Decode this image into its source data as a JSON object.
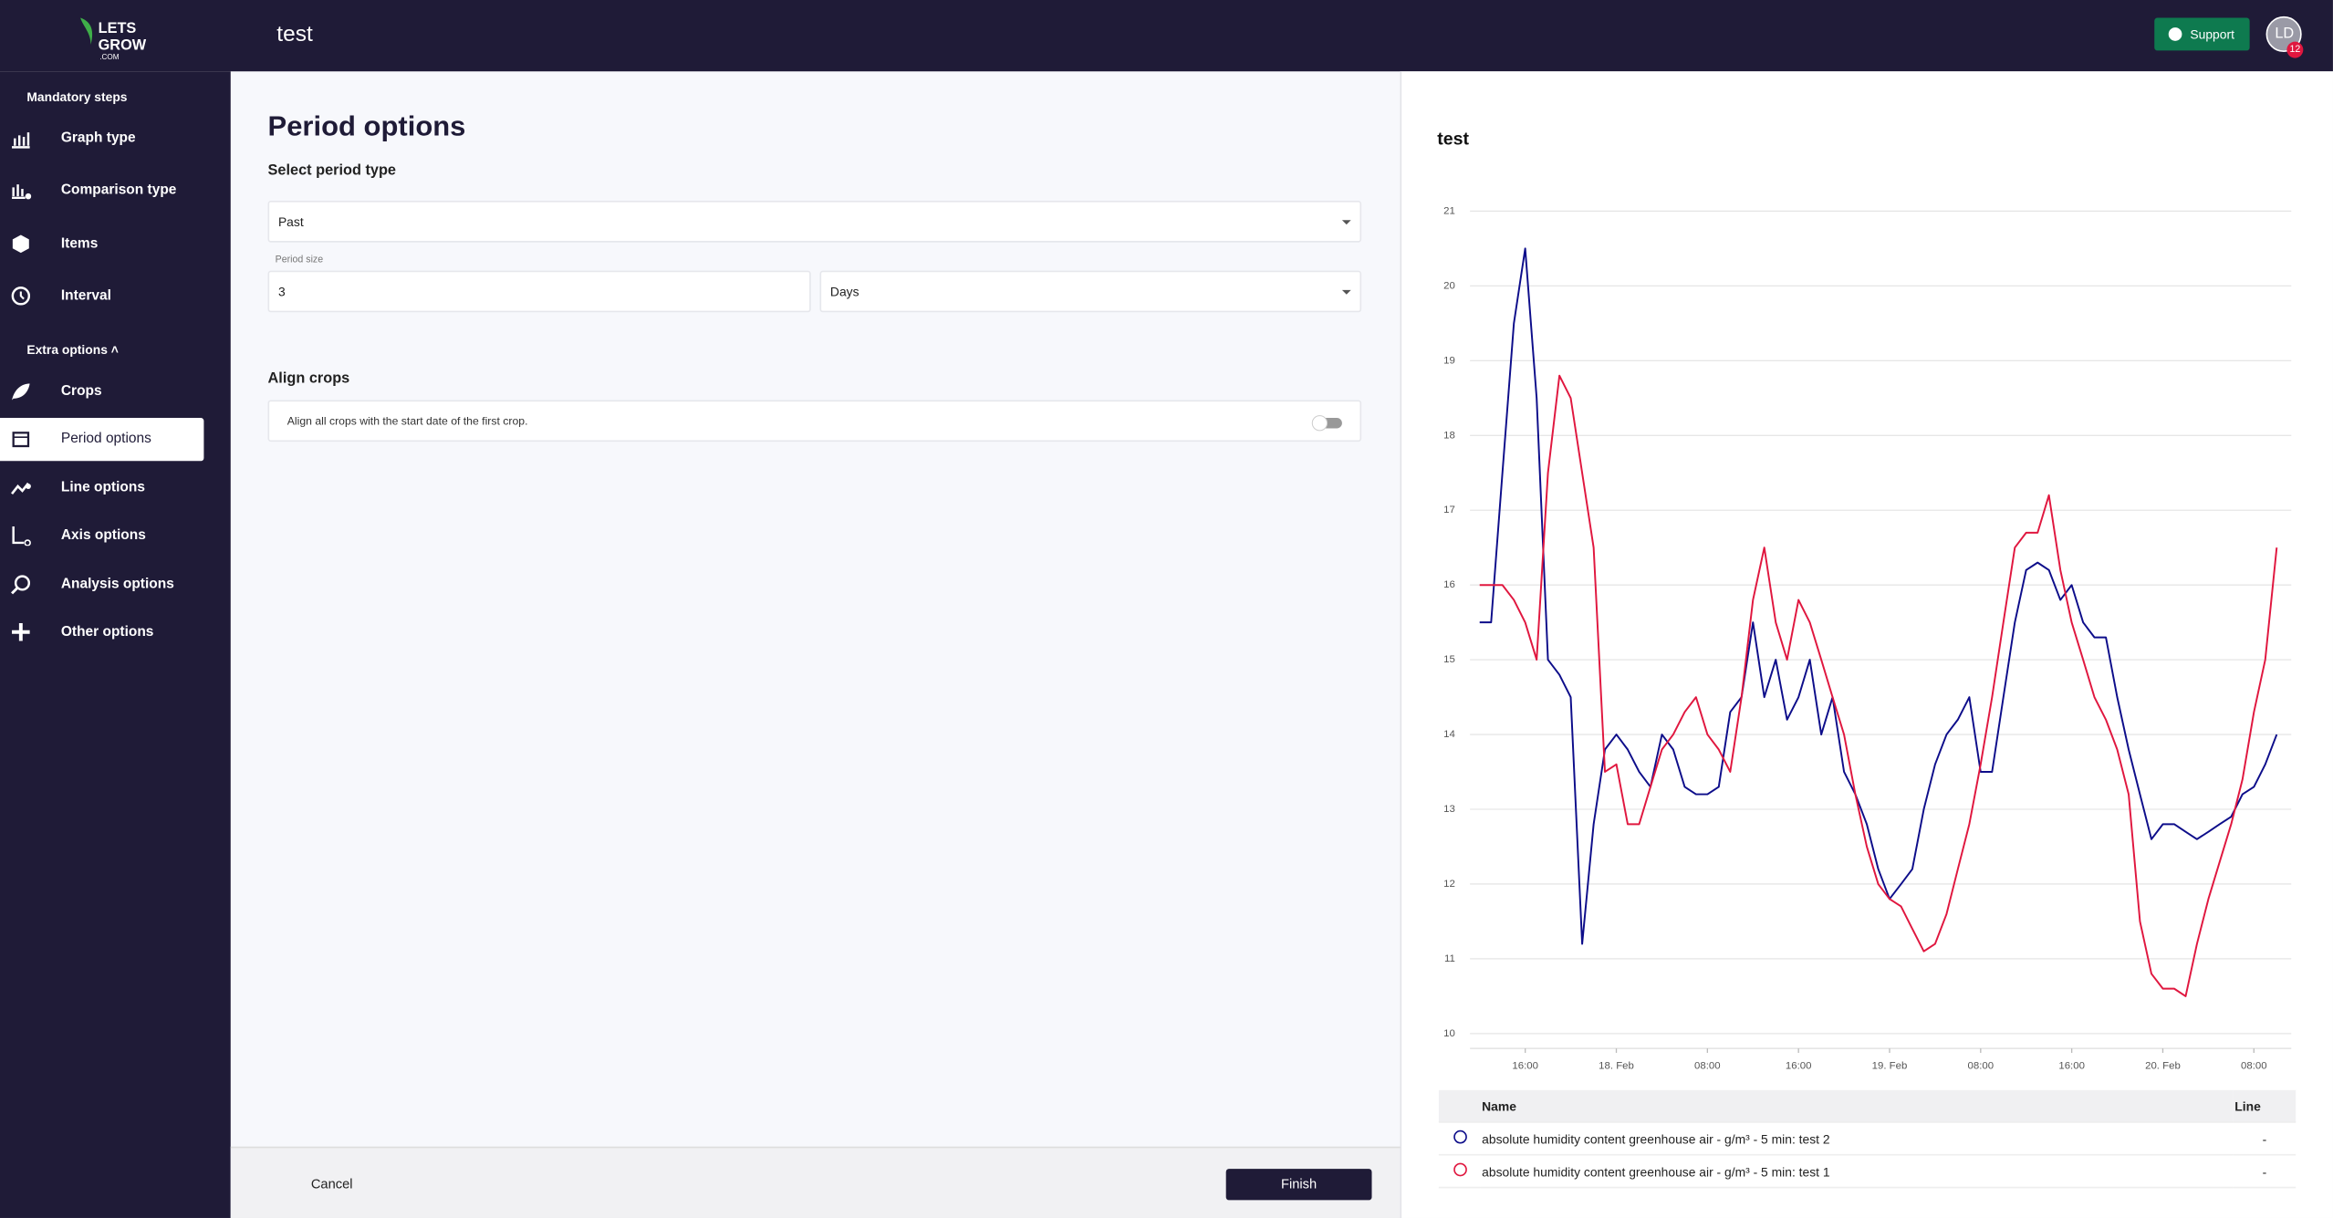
{
  "header": {
    "title": "test",
    "support": "Support",
    "avatar": "LD",
    "badge": "12"
  },
  "logo": {
    "line1": "LETS",
    "line2": "GROW",
    "line3": ".COM"
  },
  "sidebar": {
    "mandatory_heading": "Mandatory steps",
    "mandatory": [
      "Graph type",
      "Comparison type",
      "Items",
      "Interval"
    ],
    "extra_heading": "Extra options",
    "extra": [
      "Crops",
      "Period options",
      "Line options",
      "Axis options",
      "Analysis options",
      "Other options"
    ]
  },
  "form": {
    "title": "Period options",
    "period_type_label": "Select period type",
    "period_type": "Past",
    "period_size_label": "Period size",
    "period_size": "3",
    "period_unit": "Days",
    "align_heading": "Align crops",
    "align_text": "Align all crops with the start date of the first crop."
  },
  "footer": {
    "cancel": "Cancel",
    "finish": "Finish"
  },
  "chart_data": {
    "type": "line",
    "title": "test",
    "x": [
      12,
      13,
      14,
      15,
      16,
      17,
      18,
      19,
      20,
      21,
      22,
      23,
      24,
      25,
      26,
      27,
      28,
      29,
      30,
      31,
      32,
      33,
      34,
      35,
      36,
      37,
      38,
      39,
      40,
      41,
      42,
      43,
      44,
      45,
      46,
      47,
      48,
      49,
      50,
      51,
      52,
      53,
      54,
      55,
      56,
      57,
      58,
      59,
      60,
      61,
      62,
      63,
      64,
      65,
      66,
      67,
      68,
      69,
      70,
      71,
      72,
      73,
      74,
      75,
      76,
      77,
      78,
      79,
      80,
      81,
      82
    ],
    "xlim": [
      11.8,
      82.5
    ],
    "xticks": [
      {
        "value": 16,
        "label": "16:00"
      },
      {
        "value": 24,
        "label": "18. Feb"
      },
      {
        "value": 32,
        "label": "08:00"
      },
      {
        "value": 40,
        "label": "16:00"
      },
      {
        "value": 48,
        "label": "19. Feb"
      },
      {
        "value": 56,
        "label": "08:00"
      },
      {
        "value": 64,
        "label": "16:00"
      },
      {
        "value": 72,
        "label": "20. Feb"
      },
      {
        "value": 80,
        "label": "08:00"
      }
    ],
    "ylim": [
      10,
      21
    ],
    "yticks": [
      10,
      11,
      12,
      13,
      14,
      15,
      16,
      17,
      18,
      19,
      20,
      21
    ],
    "grid": true,
    "legend_headers": [
      "Name",
      "Line"
    ],
    "series": [
      {
        "name": "absolute humidity content greenhouse air - g/m³ - 5 min: test 2",
        "color": "#0d0d8a",
        "line": "-",
        "values": [
          15.5,
          15.5,
          17.5,
          19.5,
          20.5,
          18.5,
          15,
          14.8,
          14.5,
          11.2,
          12.8,
          13.8,
          14,
          13.8,
          13.5,
          13.3,
          14,
          13.8,
          13.3,
          13.2,
          13.2,
          13.3,
          14.3,
          14.5,
          15.5,
          14.5,
          15,
          14.2,
          14.5,
          15,
          14,
          14.5,
          13.5,
          13.2,
          12.8,
          12.2,
          11.8,
          12,
          12.2,
          13,
          13.6,
          14,
          14.2,
          14.5,
          13.5,
          13.5,
          14.5,
          15.5,
          16.2,
          16.3,
          16.2,
          15.8,
          16,
          15.5,
          15.3,
          15.3,
          14.5,
          13.8,
          13.2,
          12.6,
          12.8,
          12.8,
          12.7,
          12.6,
          12.7,
          12.8,
          12.9,
          13.2,
          13.3,
          13.6,
          14
        ]
      },
      {
        "name": "absolute humidity content greenhouse air - g/m³ - 5 min: test 1",
        "color": "#e0173f",
        "line": "-",
        "values": [
          16,
          16,
          16,
          15.8,
          15.5,
          15,
          17.5,
          18.8,
          18.5,
          17.5,
          16.5,
          13.5,
          13.6,
          12.8,
          12.8,
          13.3,
          13.8,
          14,
          14.3,
          14.5,
          14,
          13.8,
          13.5,
          14.5,
          15.8,
          16.5,
          15.5,
          15,
          15.8,
          15.5,
          15,
          14.5,
          14,
          13.2,
          12.5,
          12,
          11.8,
          11.7,
          11.4,
          11.1,
          11.2,
          11.6,
          12.2,
          12.8,
          13.6,
          14.5,
          15.5,
          16.5,
          16.7,
          16.7,
          17.2,
          16.2,
          15.5,
          15,
          14.5,
          14.2,
          13.8,
          13.2,
          11.5,
          10.8,
          10.6,
          10.6,
          10.5,
          11.2,
          11.8,
          12.3,
          12.8,
          13.4,
          14.3,
          15,
          16.5
        ]
      }
    ]
  }
}
